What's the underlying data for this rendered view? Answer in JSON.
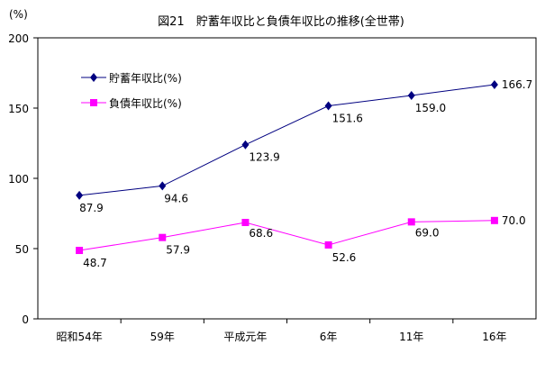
{
  "chart_data": {
    "type": "line",
    "title": "図21　貯蓄年収比と負債年収比の推移(全世帯)",
    "ylabel": "(%)",
    "xlabel": "",
    "categories": [
      "昭和54年",
      "59年",
      "平成元年",
      "6年",
      "11年",
      "16年"
    ],
    "ylim": [
      0,
      200
    ],
    "yticks": [
      "0",
      "50",
      "100",
      "150",
      "200"
    ],
    "grid": false,
    "legend_position": "top-left",
    "series": [
      {
        "name": "貯蓄年収比(%)",
        "color": "#000080",
        "marker": "diamond",
        "values": [
          87.9,
          94.6,
          123.9,
          151.6,
          159.0,
          166.7
        ],
        "labels": [
          "87.9",
          "94.6",
          "123.9",
          "151.6",
          "159.0",
          "166.7"
        ]
      },
      {
        "name": "負債年収比(%)",
        "color": "#FF00FF",
        "marker": "square",
        "values": [
          48.7,
          57.9,
          68.6,
          52.6,
          69.0,
          70.0
        ],
        "labels": [
          "48.7",
          "57.9",
          "68.6",
          "52.6",
          "69.0",
          "70.0"
        ]
      }
    ]
  }
}
